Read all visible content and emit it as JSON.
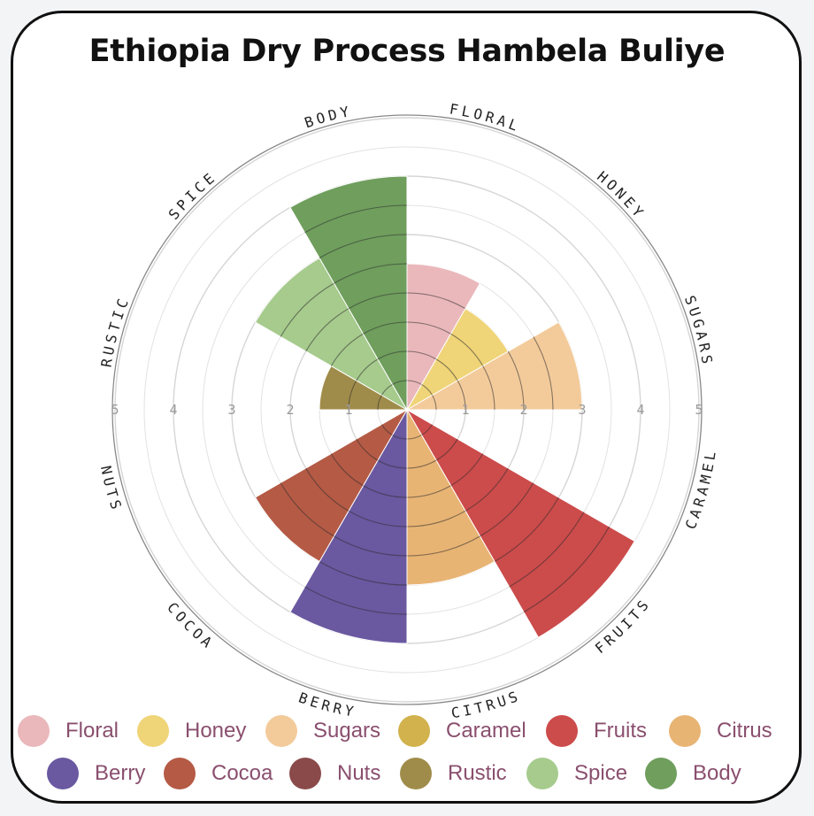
{
  "title": "Ethiopia Dry Process Hambela Buliye",
  "chart_data": {
    "type": "polar-area",
    "title": "Ethiopia Dry Process Hambela Buliye",
    "r_max": 5,
    "ticks": [
      "1",
      "2",
      "3",
      "4",
      "5"
    ],
    "categories": [
      {
        "name": "Floral",
        "label": "FLORAL",
        "value": 2.5,
        "color": "#eab8bb"
      },
      {
        "name": "Honey",
        "label": "HONEY",
        "value": 2.0,
        "color": "#efd478"
      },
      {
        "name": "Sugars",
        "label": "SUGARS",
        "value": 3.0,
        "color": "#f3cb9b"
      },
      {
        "name": "Caramel",
        "label": "CARAMEL",
        "value": 0,
        "color": "#d1b24d"
      },
      {
        "name": "Fruits",
        "label": "FRUITS",
        "value": 4.5,
        "color": "#cc4b4b"
      },
      {
        "name": "Citrus",
        "label": "CITRUS",
        "value": 3.0,
        "color": "#e8b474"
      },
      {
        "name": "Berry",
        "label": "BERRY",
        "value": 4.0,
        "color": "#6a58a0"
      },
      {
        "name": "Cocoa",
        "label": "COCOA",
        "value": 3.0,
        "color": "#b45a45"
      },
      {
        "name": "Nuts",
        "label": "NUTS",
        "value": 0,
        "color": "#8a4a4a"
      },
      {
        "name": "Rustic",
        "label": "RUSTIC",
        "value": 1.5,
        "color": "#a08c4a"
      },
      {
        "name": "Spice",
        "label": "SPICE",
        "value": 3.0,
        "color": "#a6cb8d"
      },
      {
        "name": "Body",
        "label": "BODY",
        "value": 4.0,
        "color": "#6f9e5d"
      }
    ]
  }
}
